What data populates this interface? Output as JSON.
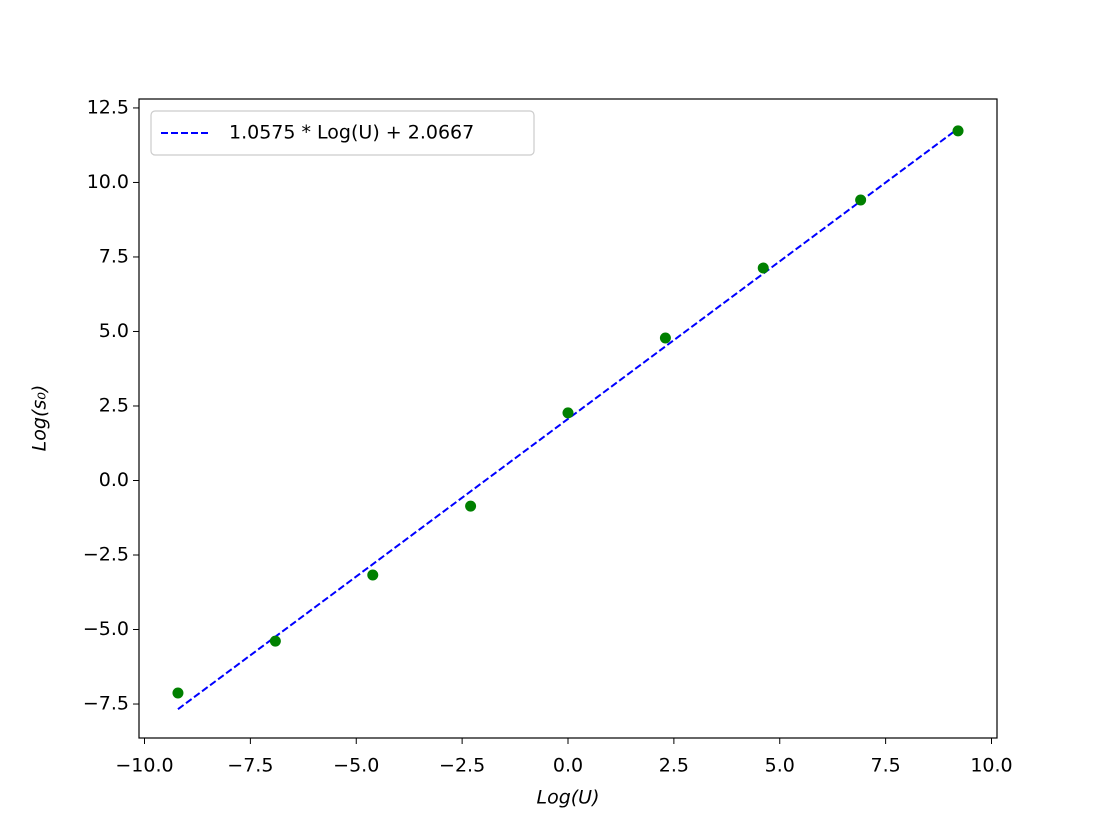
{
  "chart_data": {
    "type": "scatter",
    "xlabel": "Log(U)",
    "ylabel": "Log(s₀)",
    "xlim": [
      -10.13,
      10.13
    ],
    "ylim": [
      -8.64,
      12.8
    ],
    "xticks": [
      {
        "value": -10,
        "label": "−10.0"
      },
      {
        "value": -7.5,
        "label": "−7.5"
      },
      {
        "value": -5,
        "label": "−5.0"
      },
      {
        "value": -2.5,
        "label": "−2.5"
      },
      {
        "value": 0,
        "label": "0.0"
      },
      2.5,
      {
        "value": 5,
        "label": "5.0"
      },
      7.5,
      {
        "value": 10,
        "label": "10.0"
      }
    ],
    "yticks": [
      {
        "value": -7.5,
        "label": "−7.5"
      },
      {
        "value": -5,
        "label": "−5.0"
      },
      {
        "value": -2.5,
        "label": "−2.5"
      },
      {
        "value": 0,
        "label": "0.0"
      },
      2.5,
      {
        "value": 5,
        "label": "5.0"
      },
      7.5,
      {
        "value": 10,
        "label": "10.0"
      },
      12.5
    ],
    "legend": "upper left",
    "series": [
      {
        "name": "1.0575 * Log(U) + 2.0667",
        "type": "line",
        "linestyle": "dashed",
        "color": "#0000ff",
        "x": [
          -9.21,
          9.21
        ],
        "values": [
          -7.673,
          11.806
        ]
      },
      {
        "type": "scatter",
        "color": "#008000",
        "x": [
          -9.21,
          -6.91,
          -4.61,
          -2.3,
          0,
          2.3,
          4.61,
          6.91,
          9.21
        ],
        "values": [
          -7.13,
          -5.39,
          -3.17,
          -0.86,
          2.27,
          4.78,
          7.13,
          9.41,
          11.73
        ]
      }
    ]
  }
}
